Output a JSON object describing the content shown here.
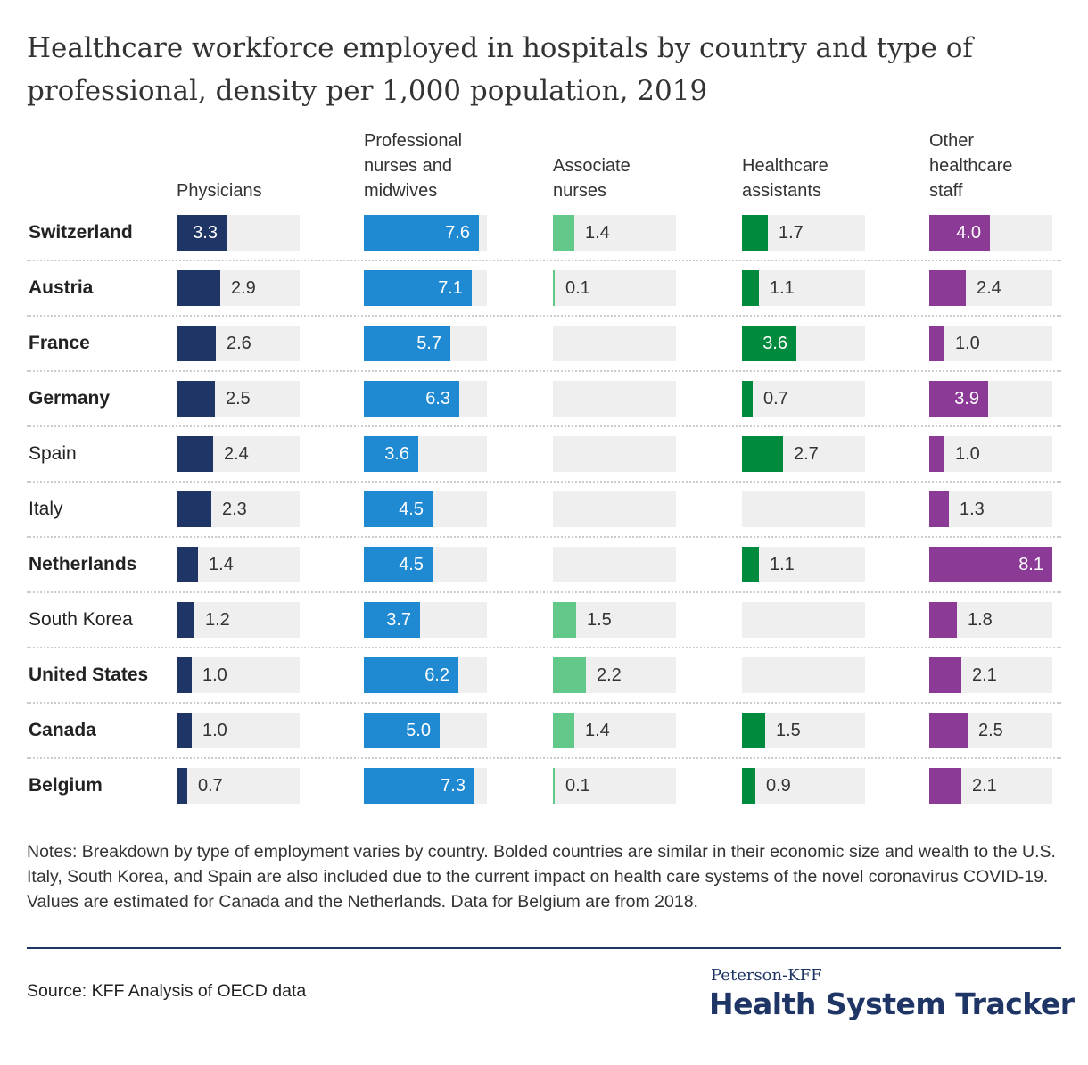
{
  "title": "Healthcare workforce employed in hospitals by country and type of professional, density per 1,000 population, 2019",
  "notes": "Notes: Breakdown by type of employment varies by country. Bolded countries are similar in their economic size and wealth to the U.S. Italy, South Korea, and Spain are also included due to the current impact on health care systems of the novel coronavirus COVID-19. Values are estimated for Canada and the Netherlands. Data for Belgium are from 2018.",
  "source": "Source: KFF Analysis of OECD data",
  "brand": {
    "top": "Peterson-KFF",
    "main": "Health System Tracker"
  },
  "chart_data": {
    "type": "bar",
    "title": "Healthcare workforce employed in hospitals by country and type of professional, density per 1,000 population, 2019",
    "categories": [
      "Switzerland",
      "Austria",
      "France",
      "Germany",
      "Spain",
      "Italy",
      "Netherlands",
      "South Korea",
      "United States",
      "Canada",
      "Belgium"
    ],
    "bold": [
      true,
      true,
      true,
      true,
      false,
      false,
      true,
      false,
      true,
      true,
      true
    ],
    "xlim": [
      0,
      8.1
    ],
    "series": [
      {
        "name": "Physicians",
        "color": "#1e3566",
        "values": [
          3.3,
          2.9,
          2.6,
          2.5,
          2.4,
          2.3,
          1.4,
          1.2,
          1.0,
          1.0,
          0.7
        ]
      },
      {
        "name": "Professional nurses and midwives",
        "color": "#1f8ad2",
        "values": [
          7.6,
          7.1,
          5.7,
          6.3,
          3.6,
          4.5,
          4.5,
          3.7,
          6.2,
          5.0,
          7.3
        ]
      },
      {
        "name": "Associate nurses",
        "color": "#63c98a",
        "values": [
          1.4,
          0.1,
          null,
          null,
          null,
          null,
          null,
          1.5,
          2.2,
          1.4,
          0.1
        ]
      },
      {
        "name": "Healthcare assistants",
        "color": "#008a3e",
        "values": [
          1.7,
          1.1,
          3.6,
          0.7,
          2.7,
          null,
          1.1,
          null,
          null,
          1.5,
          0.9
        ]
      },
      {
        "name": "Other healthcare staff",
        "color": "#8b3a96",
        "values": [
          4.0,
          2.4,
          1.0,
          3.9,
          1.0,
          1.3,
          8.1,
          1.8,
          2.1,
          2.5,
          2.1
        ]
      }
    ]
  }
}
